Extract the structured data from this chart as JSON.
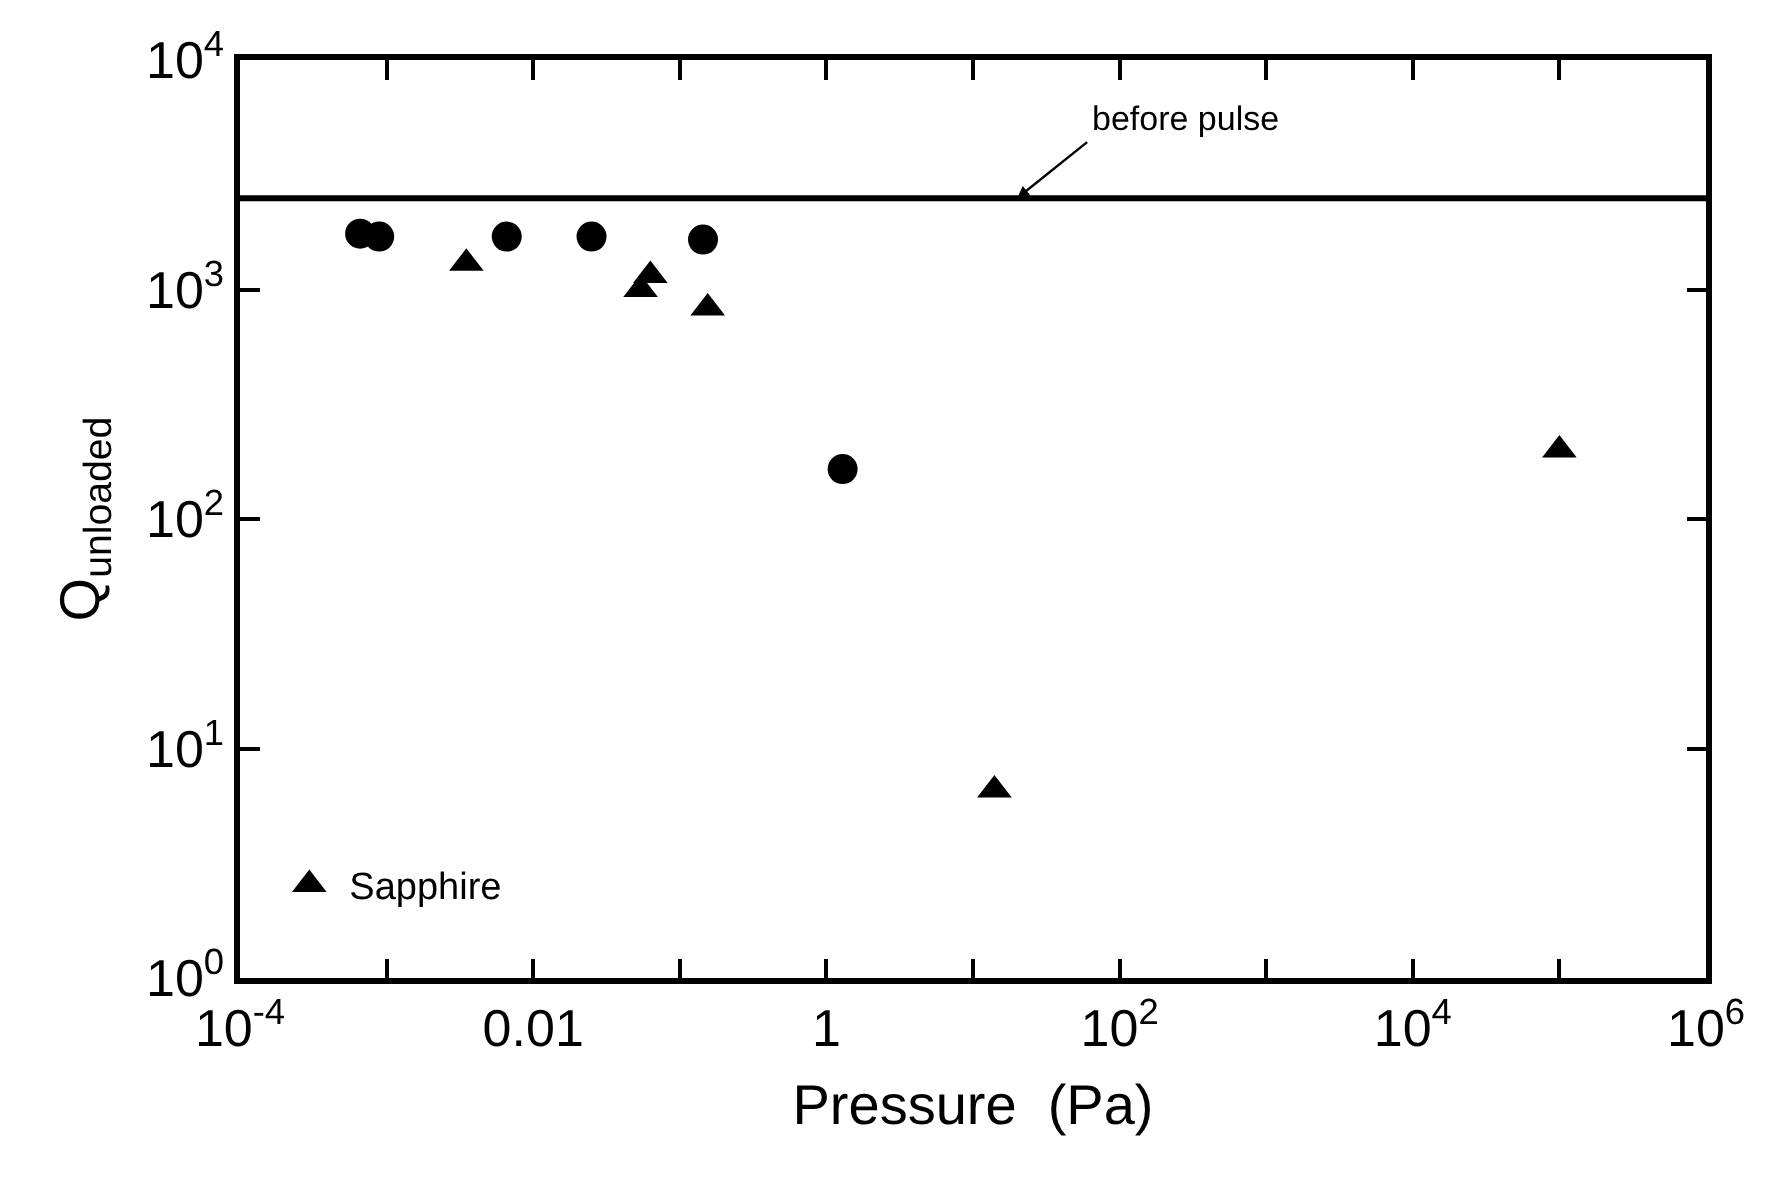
{
  "chart_data": {
    "type": "scatter",
    "xlabel": "Pressure  (Pa)",
    "ylabel": "Q$_{unloaded}$",
    "log": "xy",
    "legend": "bottom left",
    "series": [
      {
        "color": "#000000",
        "marker": "circle",
        "x": [
          0.00066,
          0.00089,
          0.0066,
          0.025,
          0.144,
          1.29
        ],
        "values": [
          1750,
          1700,
          1700,
          1700,
          1650,
          165
        ]
      },
      {
        "name": "Sapphire",
        "color": "#000000",
        "marker": "triangle",
        "x": [
          0.0035,
          0.054,
          0.063,
          0.155,
          14,
          100000
        ],
        "values": [
          1300,
          1000,
          1150,
          830,
          6.6,
          200
        ]
      }
    ],
    "xlim": [
      0.0001,
      1000000
    ],
    "xticks": [
      {
        "value": 0.0001,
        "label": "10$^{-4}$"
      },
      {
        "value": 0.001,
        "label": null
      },
      0.01,
      {
        "value": 0.1,
        "label": null
      },
      1,
      {
        "value": 10,
        "label": null
      },
      {
        "value": 100,
        "label": "10$^{2}$"
      },
      {
        "value": 1000,
        "label": null
      },
      {
        "value": 10000,
        "label": "10$^{4}$"
      },
      {
        "value": 100000,
        "label": null
      },
      {
        "value": 1000000,
        "label": "10$^{6}$"
      }
    ],
    "ylim": [
      1,
      10000
    ],
    "yticks": [
      {
        "value": 1,
        "label": "10$^{0}$"
      },
      {
        "value": 10,
        "label": "10$^{1}$"
      },
      {
        "value": 100,
        "label": "10$^{2}$"
      },
      {
        "value": 1000,
        "label": "10$^{3}$"
      },
      {
        "value": 10000,
        "label": "10$^{4}$"
      }
    ],
    "ref_lines": [
      {
        "axis": "y",
        "value": 2500,
        "color": "#000000",
        "line_style": "solid"
      }
    ],
    "annotations": [
      {
        "text": "before pulse",
        "x": 20,
        "y": 2500
      }
    ]
  }
}
